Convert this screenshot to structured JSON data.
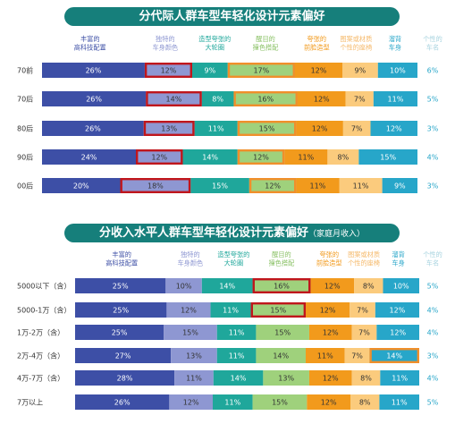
{
  "colors": {
    "title_bg": "#167f7b",
    "series": [
      "#3d4fa6",
      "#8e97d2",
      "#1fa79b",
      "#9fd17c",
      "#f29a1c",
      "#fbcb7d",
      "#27a6c9",
      "#bfdee5"
    ],
    "header_text": [
      "#3d4fa6",
      "#8e97d2",
      "#1fa79b",
      "#8bc267",
      "#f29a1c",
      "#f5b96a",
      "#27a6c9",
      "#a7d3df"
    ],
    "other_value": "#27a6c9",
    "highlight_red": "#c0161c",
    "highlight_orange": "#f08f2b"
  },
  "chart_data": [
    {
      "type": "bar",
      "orientation": "horizontal",
      "stacked": true,
      "title": "分代际人群车型年轻化设计元素偏好",
      "subtitle": "",
      "series": [
        {
          "name": "丰富的\n高科技配置",
          "values": [
            26,
            26,
            26,
            24,
            20
          ]
        },
        {
          "name": "独特的\n车身颜色",
          "values": [
            12,
            14,
            13,
            12,
            18
          ]
        },
        {
          "name": "造型夸张的\n大轮圈",
          "values": [
            9,
            8,
            11,
            14,
            15
          ]
        },
        {
          "name": "醒目的\n撞色搭配",
          "values": [
            17,
            16,
            15,
            12,
            12
          ]
        },
        {
          "name": "夸张的\n前脸造型",
          "values": [
            12,
            12,
            12,
            11,
            11
          ]
        },
        {
          "name": "图案或材质\n个性的座椅",
          "values": [
            9,
            7,
            7,
            8,
            11
          ]
        },
        {
          "name": "溜背\n车身",
          "values": [
            10,
            11,
            12,
            15,
            9
          ]
        },
        {
          "name": "个性的\n车名",
          "values": [
            6,
            5,
            3,
            4,
            3
          ]
        }
      ],
      "categories": [
        "70前",
        "70后",
        "80后",
        "90后",
        "00后"
      ],
      "highlights": [
        {
          "row": 0,
          "series": 1,
          "color": "red"
        },
        {
          "row": 0,
          "series": 3,
          "color": "orange"
        },
        {
          "row": 1,
          "series": 1,
          "color": "red"
        },
        {
          "row": 1,
          "series": 3,
          "color": "orange"
        },
        {
          "row": 2,
          "series": 1,
          "color": "red"
        },
        {
          "row": 2,
          "series": 3,
          "color": "orange"
        },
        {
          "row": 3,
          "series": 1,
          "color": "red"
        },
        {
          "row": 3,
          "series": 3,
          "color": "orange"
        },
        {
          "row": 4,
          "series": 1,
          "color": "red"
        },
        {
          "row": 4,
          "series": 3,
          "color": "orange"
        }
      ]
    },
    {
      "type": "bar",
      "orientation": "horizontal",
      "stacked": true,
      "title": "分收入水平人群车型年轻化设计元素偏好",
      "subtitle": "（家庭月收入）",
      "series": [
        {
          "name": "丰富的\n高科技配置",
          "values": [
            25,
            25,
            25,
            27,
            28,
            26
          ]
        },
        {
          "name": "独特的\n车身颜色",
          "values": [
            10,
            12,
            15,
            13,
            11,
            12
          ]
        },
        {
          "name": "造型夸张的\n大轮圈",
          "values": [
            14,
            11,
            11,
            11,
            14,
            11
          ]
        },
        {
          "name": "醒目的\n撞色搭配",
          "values": [
            16,
            15,
            15,
            14,
            13,
            15
          ]
        },
        {
          "name": "夸张的\n前脸造型",
          "values": [
            12,
            12,
            12,
            11,
            12,
            12
          ]
        },
        {
          "name": "图案或材质\n个性的座椅",
          "values": [
            8,
            7,
            7,
            7,
            8,
            8
          ]
        },
        {
          "name": "溜背\n车身",
          "values": [
            10,
            12,
            12,
            14,
            11,
            11
          ]
        },
        {
          "name": "个性的\n车名",
          "values": [
            5,
            4,
            4,
            3,
            4,
            5
          ]
        }
      ],
      "categories": [
        "5000以下（含）",
        "5000-1万（含）",
        "1万-2万（含）",
        "2万-4万（含）",
        "4万-7万（含）",
        "7万以上"
      ],
      "highlights": [
        {
          "row": 0,
          "series": 3,
          "color": "red"
        },
        {
          "row": 1,
          "series": 3,
          "color": "red"
        },
        {
          "row": 3,
          "series": 6,
          "color": "orange"
        }
      ]
    }
  ]
}
